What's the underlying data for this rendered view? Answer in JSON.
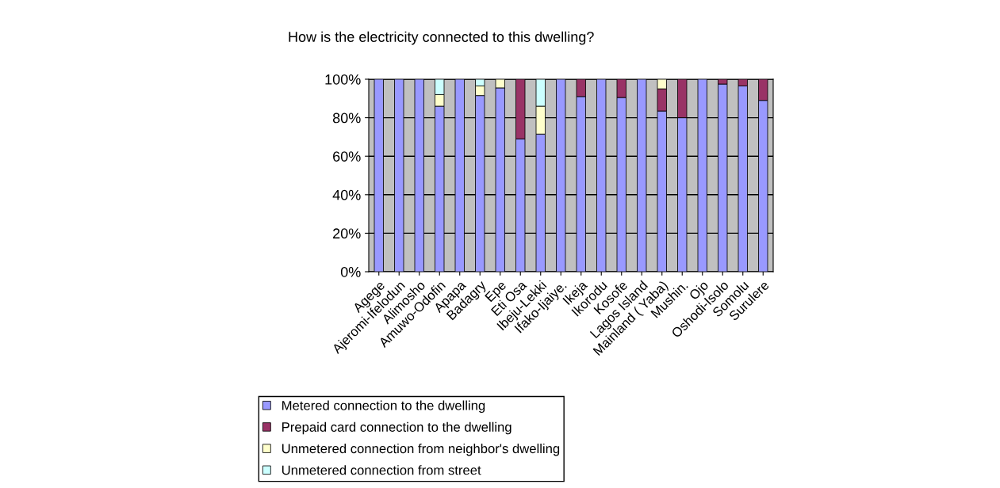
{
  "chart_data": {
    "type": "bar",
    "stacked": true,
    "title": "How is the electricity connected to this dwelling?",
    "categories": [
      "Agege",
      "Ajeromi-Ifelodun",
      "Alimosho",
      "Amuwo-Odofin",
      "Apapa",
      "Badagry",
      "Epe",
      "Eti Osa",
      "Ibeju-Lekki",
      "Ifako-Ijaiye.",
      "Ikeja",
      "Ikorodu",
      "Kosofe",
      "Lagos Island",
      "Mainland ( Yaba)",
      "Mushin.",
      "Ojo",
      "Oshodi-Isolo",
      "Somolu",
      "Surulere"
    ],
    "series": [
      {
        "name": "Metered connection to the dwelling",
        "color": "#9999ff",
        "values": [
          100,
          100,
          100,
          86,
          100,
          91.5,
          95.5,
          69,
          71.5,
          100,
          91,
          100,
          90.5,
          100,
          83.5,
          80,
          100,
          97.5,
          96.5,
          89
        ]
      },
      {
        "name": "Prepaid card connection to the dwelling",
        "color": "#993366",
        "values": [
          0,
          0,
          0,
          0,
          0,
          0,
          0,
          31,
          0,
          0,
          9,
          0,
          9.5,
          0,
          11.5,
          20,
          0,
          2.5,
          3.5,
          11
        ]
      },
      {
        "name": "Unmetered connection from neighbor's dwelling",
        "color": "#ffffcc",
        "values": [
          0,
          0,
          0,
          6,
          0,
          5,
          4.5,
          0,
          14.5,
          0,
          0,
          0,
          0,
          0,
          5,
          0,
          0,
          0,
          0,
          0
        ]
      },
      {
        "name": "Unmetered connection from street",
        "color": "#ccffff",
        "values": [
          0,
          0,
          0,
          8,
          0,
          3.5,
          0,
          0,
          14,
          0,
          0,
          0,
          0,
          0,
          0,
          0,
          0,
          0,
          0,
          0
        ]
      }
    ],
    "ylim": [
      0,
      100
    ],
    "yticks": [
      {
        "value": 0,
        "label": "0%"
      },
      {
        "value": 20,
        "label": "20%"
      },
      {
        "value": 40,
        "label": "40%"
      },
      {
        "value": 60,
        "label": "60%"
      },
      {
        "value": 80,
        "label": "80%"
      },
      {
        "value": 100,
        "label": "100%"
      }
    ],
    "grid": "y",
    "legend": "bottom"
  }
}
